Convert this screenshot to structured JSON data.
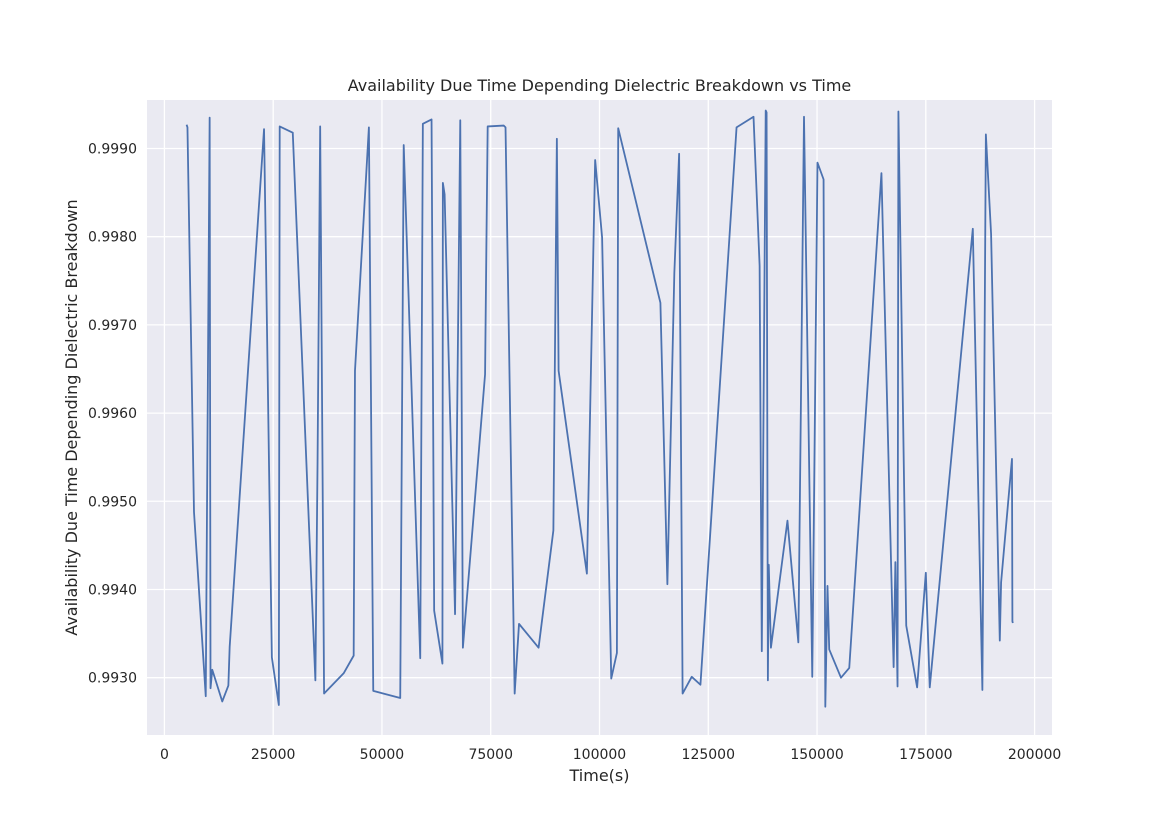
{
  "chart_data": {
    "type": "line",
    "title": "Availability Due Time Depending Dielectric Breakdown vs Time",
    "xlabel": "Time(s)",
    "ylabel": "Availability Due Time Depending Dielectric Breakdown",
    "xlim": [
      -4000,
      204000
    ],
    "ylim": [
      0.99235,
      0.99955
    ],
    "xticks": [
      0,
      25000,
      50000,
      75000,
      100000,
      125000,
      150000,
      175000,
      200000
    ],
    "xtick_labels": [
      "0",
      "25000",
      "50000",
      "75000",
      "100000",
      "125000",
      "150000",
      "175000",
      "200000"
    ],
    "yticks": [
      0.993,
      0.994,
      0.995,
      0.996,
      0.997,
      0.998,
      0.999
    ],
    "ytick_labels": [
      "0.9930",
      "0.9940",
      "0.9950",
      "0.9960",
      "0.9970",
      "0.9980",
      "0.9990"
    ],
    "grid": true,
    "background": "#eaeaf2",
    "grid_color": "#ffffff",
    "series": [
      {
        "color": "#4c72b0",
        "x": [
          5100,
          5300,
          6800,
          9500,
          10400,
          10600,
          11000,
          13300,
          14700,
          15000,
          22900,
          24700,
          26300,
          26500,
          29500,
          34700,
          35200,
          35800,
          36700,
          41200,
          43500,
          43800,
          47000,
          48000,
          54200,
          55000,
          58800,
          59400,
          61400,
          62000,
          63900,
          64000,
          64400,
          66800,
          68000,
          68600,
          73700,
          74000,
          74300,
          78000,
          78400,
          80500,
          81500,
          86000,
          89400,
          90200,
          90600,
          97100,
          99000,
          100600,
          102700,
          104000,
          104300,
          114000,
          115600,
          117200,
          118300,
          119100,
          121200,
          123200,
          131500,
          135400,
          136800,
          137300,
          138200,
          138400,
          138700,
          138900,
          139400,
          143200,
          145700,
          147000,
          148900,
          150100,
          151500,
          151900,
          152400,
          152800,
          155500,
          157400,
          164800,
          167600,
          168000,
          168500,
          168700,
          170500,
          173000,
          175000,
          175900,
          185800,
          188000,
          188800,
          190000,
          192000,
          192300,
          194800,
          194900,
          195000
        ],
        "y": [
          0.99927,
          0.99924,
          0.99488,
          0.99279,
          0.99935,
          0.99288,
          0.99309,
          0.99273,
          0.99291,
          0.99335,
          0.99922,
          0.99323,
          0.99269,
          0.99925,
          0.99918,
          0.99297,
          0.99545,
          0.99925,
          0.99282,
          0.99305,
          0.99325,
          0.99648,
          0.99924,
          0.99285,
          0.99277,
          0.99904,
          0.99322,
          0.99928,
          0.99933,
          0.99376,
          0.99316,
          0.99861,
          0.99848,
          0.99372,
          0.99932,
          0.99334,
          0.99644,
          0.99789,
          0.99925,
          0.99926,
          0.99924,
          0.99282,
          0.99361,
          0.99334,
          0.99467,
          0.99911,
          0.99648,
          0.99418,
          0.99887,
          0.99799,
          0.99299,
          0.99328,
          0.99923,
          0.99725,
          0.99406,
          0.99759,
          0.99894,
          0.99282,
          0.99301,
          0.99292,
          0.99924,
          0.99936,
          0.99767,
          0.9933,
          0.99943,
          0.99941,
          0.99297,
          0.99428,
          0.99334,
          0.99478,
          0.9934,
          0.99936,
          0.99301,
          0.99884,
          0.99865,
          0.99267,
          0.99404,
          0.99332,
          0.993,
          0.99311,
          0.99872,
          0.99312,
          0.99431,
          0.9929,
          0.99942,
          0.99359,
          0.99289,
          0.99419,
          0.99289,
          0.99809,
          0.99286,
          0.99916,
          0.99803,
          0.99342,
          0.99408,
          0.99548,
          0.99364,
          0.99362
        ]
      }
    ]
  }
}
